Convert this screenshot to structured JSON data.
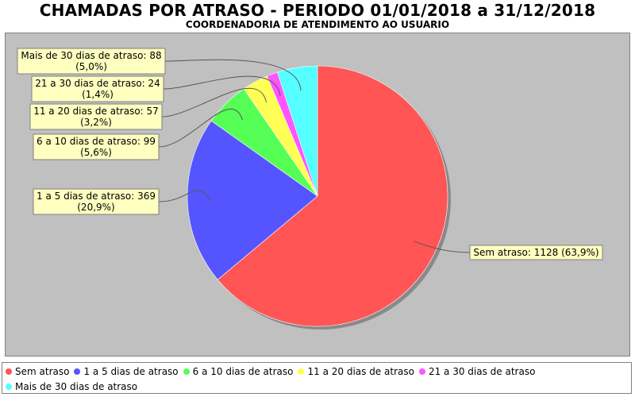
{
  "chart_data": {
    "type": "pie",
    "title": "CHAMADAS POR ATRASO - PERIODO 01/01/2018 a 31/12/2018",
    "subtitle": "COORDENADORIA DE ATENDIMENTO AO USUARIO",
    "legend_position": "bottom",
    "slices": [
      {
        "name": "Sem atraso",
        "value": 1128,
        "percent": "63,9%",
        "color": "#ff5555",
        "label_line1": "Sem atraso: 1128 (63,9%)",
        "label_line2": ""
      },
      {
        "name": "1 a 5 dias de atraso",
        "value": 369,
        "percent": "20,9%",
        "color": "#5555ff",
        "label_line1": "1 a 5 dias de atraso: 369",
        "label_line2": "(20,9%)"
      },
      {
        "name": "6 a 10 dias de atraso",
        "value": 99,
        "percent": "5,6%",
        "color": "#55ff55",
        "label_line1": "6 a 10 dias de atraso: 99",
        "label_line2": "(5,6%)"
      },
      {
        "name": "11 a 20 dias de atraso",
        "value": 57,
        "percent": "3,2%",
        "color": "#ffff55",
        "label_line1": "11 a 20 dias de atraso: 57",
        "label_line2": "(3,2%)"
      },
      {
        "name": "21 a 30 dias de atraso",
        "value": 24,
        "percent": "1,4%",
        "color": "#ff55ff",
        "label_line1": "21 a 30 dias de atraso: 24",
        "label_line2": "(1,4%)"
      },
      {
        "name": "Mais de 30 dias de atraso",
        "value": 88,
        "percent": "5,0%",
        "color": "#55ffff",
        "label_line1": "Mais de 30 dias de atraso: 88",
        "label_line2": "(5,0%)"
      }
    ]
  }
}
